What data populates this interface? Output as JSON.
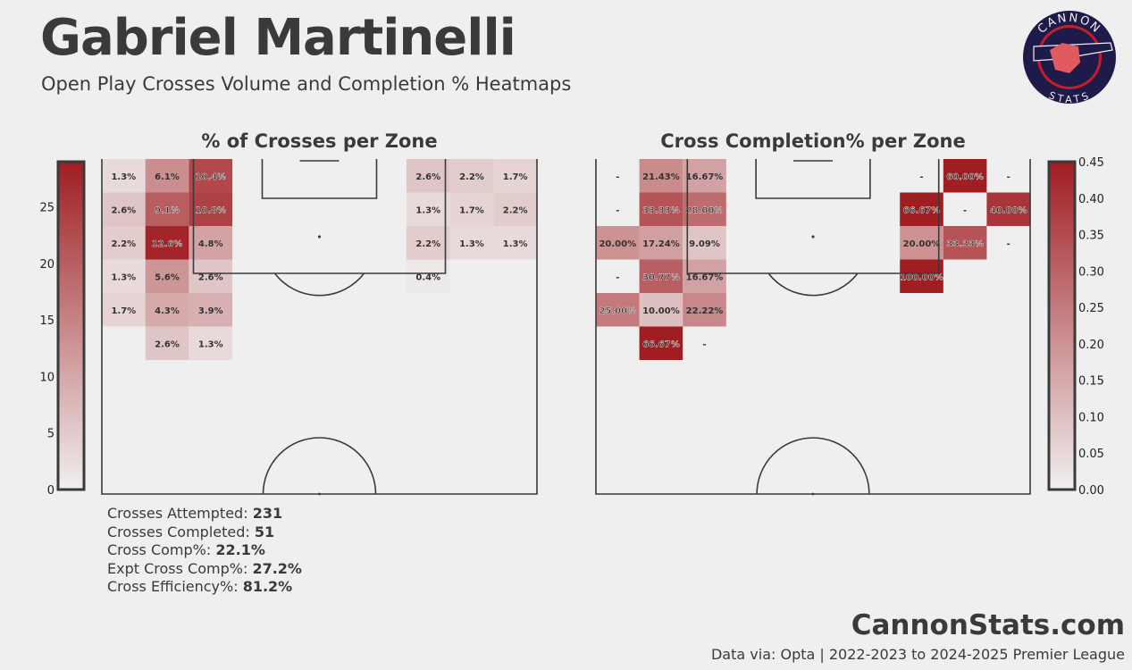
{
  "header": {
    "title": "Gabriel Martinelli",
    "subtitle": "Open Play Crosses Volume and Completion % Heatmaps"
  },
  "logo": {
    "top_text": "CANNON",
    "bottom_text": "STATS",
    "colors": {
      "outer": "#1e1b4b",
      "ring": "#c41e2a",
      "inner": "#1e1b4b"
    }
  },
  "stats": {
    "attempted_label": "Crosses Attempted:",
    "attempted_value": "231",
    "completed_label": "Crosses Completed:",
    "completed_value": "51",
    "comp_pct_label": "Cross Comp%:",
    "comp_pct_value": "22.1%",
    "xcomp_label": "Expt Cross Comp%:",
    "xcomp_value": "27.2%",
    "efficiency_label": "Cross Efficiency%:",
    "efficiency_value": "81.2%"
  },
  "footer": {
    "site": "CannonStats.com",
    "source": "Data via: Opta | 2022-2023 to 2024-2025 Premier League"
  },
  "colors": {
    "background": "#f0efef",
    "low": "#f0efef",
    "high": "#a01d22",
    "text": "#3a3a3a"
  },
  "chart_data": [
    {
      "type": "heatmap",
      "title": "% of Crosses per Zone",
      "colorbar": {
        "vmin": 0,
        "vmax": 29,
        "ticks": [
          0,
          5,
          10,
          15,
          20,
          25
        ],
        "position": "left"
      },
      "columns": 10,
      "rows": 10,
      "note": "rows listed top (row 0) to bottom; values in percent of crosses",
      "cells": [
        {
          "row": 0,
          "col": 0,
          "value": 1.3,
          "label": "1.3%"
        },
        {
          "row": 0,
          "col": 1,
          "value": 6.1,
          "label": "6.1%"
        },
        {
          "row": 0,
          "col": 2,
          "value": 10.4,
          "label": "10.4%"
        },
        {
          "row": 0,
          "col": 7,
          "value": 2.6,
          "label": "2.6%"
        },
        {
          "row": 0,
          "col": 8,
          "value": 2.2,
          "label": "2.2%"
        },
        {
          "row": 0,
          "col": 9,
          "value": 1.7,
          "label": "1.7%"
        },
        {
          "row": 1,
          "col": 0,
          "value": 2.6,
          "label": "2.6%"
        },
        {
          "row": 1,
          "col": 1,
          "value": 9.1,
          "label": "9.1%"
        },
        {
          "row": 1,
          "col": 2,
          "value": 10.8,
          "label": "10.8%"
        },
        {
          "row": 1,
          "col": 7,
          "value": 1.3,
          "label": "1.3%"
        },
        {
          "row": 1,
          "col": 8,
          "value": 1.7,
          "label": "1.7%"
        },
        {
          "row": 1,
          "col": 9,
          "value": 2.2,
          "label": "2.2%"
        },
        {
          "row": 2,
          "col": 0,
          "value": 2.2,
          "label": "2.2%"
        },
        {
          "row": 2,
          "col": 1,
          "value": 12.6,
          "label": "12.6%"
        },
        {
          "row": 2,
          "col": 2,
          "value": 4.8,
          "label": "4.8%"
        },
        {
          "row": 2,
          "col": 7,
          "value": 2.2,
          "label": "2.2%"
        },
        {
          "row": 2,
          "col": 8,
          "value": 1.3,
          "label": "1.3%"
        },
        {
          "row": 2,
          "col": 9,
          "value": 1.3,
          "label": "1.3%"
        },
        {
          "row": 3,
          "col": 0,
          "value": 1.3,
          "label": "1.3%"
        },
        {
          "row": 3,
          "col": 1,
          "value": 5.6,
          "label": "5.6%"
        },
        {
          "row": 3,
          "col": 2,
          "value": 2.6,
          "label": "2.6%"
        },
        {
          "row": 3,
          "col": 7,
          "value": 0.4,
          "label": "0.4%"
        },
        {
          "row": 4,
          "col": 0,
          "value": 1.7,
          "label": "1.7%"
        },
        {
          "row": 4,
          "col": 1,
          "value": 4.3,
          "label": "4.3%"
        },
        {
          "row": 4,
          "col": 2,
          "value": 3.9,
          "label": "3.9%"
        },
        {
          "row": 5,
          "col": 1,
          "value": 2.6,
          "label": "2.6%"
        },
        {
          "row": 5,
          "col": 2,
          "value": 1.3,
          "label": "1.3%"
        }
      ]
    },
    {
      "type": "heatmap",
      "title": "Cross Completion% per Zone",
      "colorbar": {
        "vmin": 0,
        "vmax": 0.45,
        "ticks": [
          0.0,
          0.05,
          0.1,
          0.15,
          0.2,
          0.25,
          0.3,
          0.35,
          0.4,
          0.45
        ],
        "position": "right"
      },
      "columns": 10,
      "rows": 10,
      "note": "rows listed top (row 0) to bottom; value = completion fraction, '-' label = 0%",
      "cells": [
        {
          "row": 0,
          "col": 0,
          "value": 0,
          "label": "-"
        },
        {
          "row": 0,
          "col": 1,
          "value": 0.2143,
          "label": "21.43%"
        },
        {
          "row": 0,
          "col": 2,
          "value": 0.1667,
          "label": "16.67%"
        },
        {
          "row": 0,
          "col": 7,
          "value": 0,
          "label": "-"
        },
        {
          "row": 0,
          "col": 8,
          "value": 0.6,
          "label": "60.00%"
        },
        {
          "row": 0,
          "col": 9,
          "value": 0,
          "label": "-"
        },
        {
          "row": 1,
          "col": 0,
          "value": 0,
          "label": "-"
        },
        {
          "row": 1,
          "col": 1,
          "value": 0.3333,
          "label": "33.33%"
        },
        {
          "row": 1,
          "col": 2,
          "value": 0.28,
          "label": "28.00%"
        },
        {
          "row": 1,
          "col": 7,
          "value": 0.6667,
          "label": "66.67%"
        },
        {
          "row": 1,
          "col": 8,
          "value": 0,
          "label": "-"
        },
        {
          "row": 1,
          "col": 9,
          "value": 0.4,
          "label": "40.00%"
        },
        {
          "row": 2,
          "col": 0,
          "value": 0.2,
          "label": "20.00%"
        },
        {
          "row": 2,
          "col": 1,
          "value": 0.1724,
          "label": "17.24%"
        },
        {
          "row": 2,
          "col": 2,
          "value": 0.0909,
          "label": "9.09%"
        },
        {
          "row": 2,
          "col": 7,
          "value": 0.2,
          "label": "20.00%"
        },
        {
          "row": 2,
          "col": 8,
          "value": 0.3333,
          "label": "33.33%"
        },
        {
          "row": 2,
          "col": 9,
          "value": 0,
          "label": "-"
        },
        {
          "row": 3,
          "col": 0,
          "value": 0,
          "label": "-"
        },
        {
          "row": 3,
          "col": 1,
          "value": 0.3077,
          "label": "30.77%"
        },
        {
          "row": 3,
          "col": 2,
          "value": 0.1667,
          "label": "16.67%"
        },
        {
          "row": 3,
          "col": 7,
          "value": 1.0,
          "label": "100.00%"
        },
        {
          "row": 4,
          "col": 0,
          "value": 0.25,
          "label": "25.00%"
        },
        {
          "row": 4,
          "col": 1,
          "value": 0.1,
          "label": "10.00%"
        },
        {
          "row": 4,
          "col": 2,
          "value": 0.2222,
          "label": "22.22%"
        },
        {
          "row": 5,
          "col": 1,
          "value": 0.6667,
          "label": "66.67%"
        },
        {
          "row": 5,
          "col": 2,
          "value": 0,
          "label": "-"
        }
      ]
    }
  ]
}
